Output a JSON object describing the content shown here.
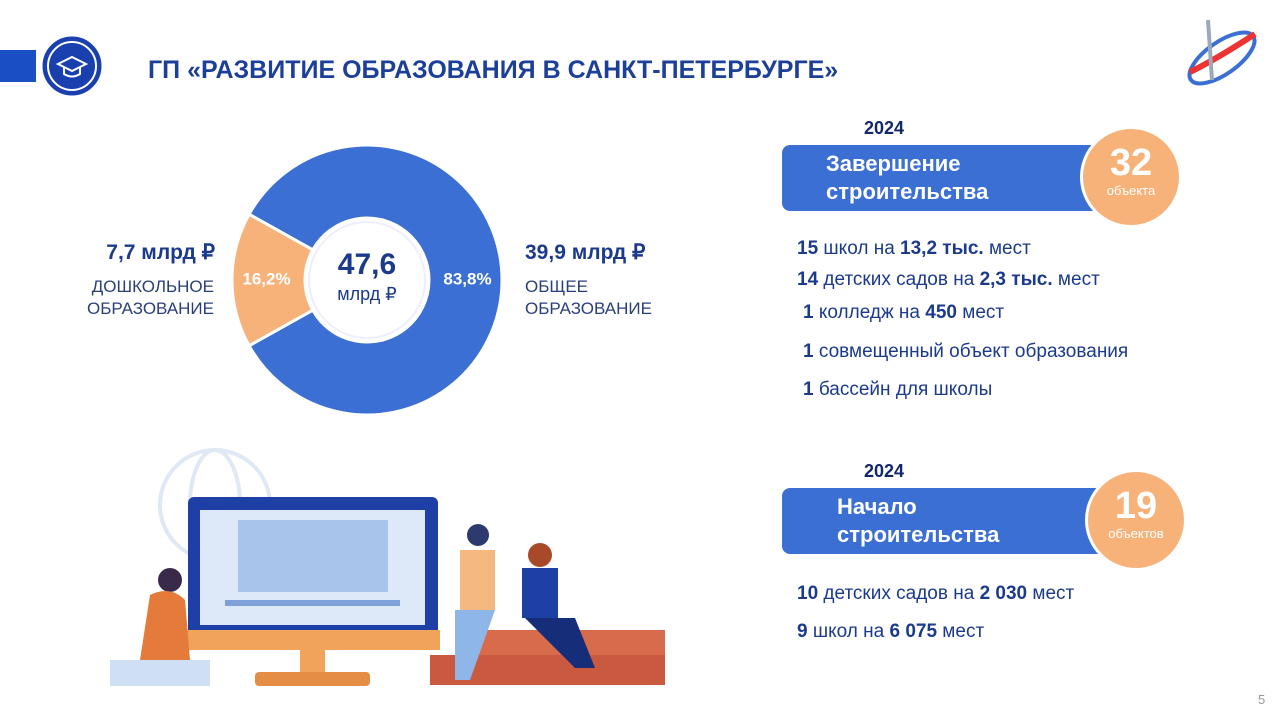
{
  "header": {
    "title": "ГП «РАЗВИТИЕ ОБРАЗОВАНИЯ В САНКТ-ПЕТЕРБУРГЕ»"
  },
  "chart_data": {
    "type": "donut",
    "center_value": "47,6",
    "center_unit": "млрд ₽",
    "categories": [
      "ДОШКОЛЬНОЕ ОБРАЗОВАНИЕ",
      "ОБЩЕЕ ОБРАЗОВАНИЕ"
    ],
    "values": [
      16.2,
      83.8
    ],
    "value_labels": [
      "16,2%",
      "83,8%"
    ],
    "amount_labels": [
      "7,7 млрд ₽",
      "39,9 млрд ₽"
    ],
    "colors": [
      "#f7b27a",
      "#3b6fd4"
    ]
  },
  "panels": [
    {
      "year": "2024",
      "title": "Завершение строительства",
      "count": "32",
      "count_unit": "объекта",
      "items": [
        [
          "15",
          " школ на ",
          "13,2 тыс.",
          " мест"
        ],
        [
          "14",
          " детских садов на ",
          "2,3 тыс.",
          " мест"
        ],
        [
          "1",
          " колледж на ",
          "450",
          " мест"
        ],
        [
          "1",
          " совмещенный объект образования"
        ],
        [
          "1",
          " бассейн для школы"
        ]
      ]
    },
    {
      "year": "2024",
      "title": "Начало строительства",
      "count": "19",
      "count_unit": "объектов",
      "items": [
        [
          "10",
          " детских садов на ",
          "2 030",
          " мест"
        ],
        [
          "9",
          " школ на ",
          "6 075",
          " мест"
        ]
      ]
    }
  ],
  "page_number": "5"
}
